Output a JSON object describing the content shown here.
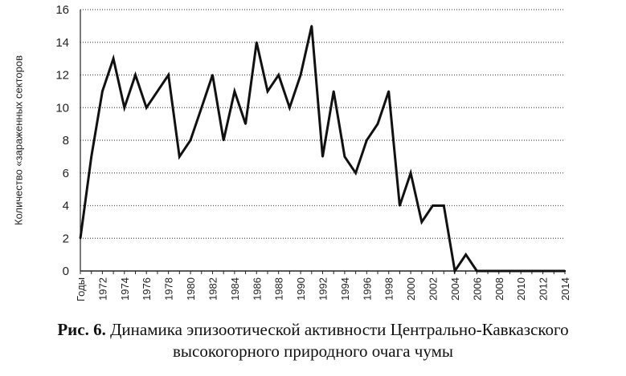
{
  "figure": {
    "caption_prefix": "Рис. 6.",
    "caption_line1": "Динамика эпизоотической активности Центрально-Кавказского",
    "caption_line2": "высокогорного природного очага чумы"
  },
  "chart_data": {
    "type": "line",
    "title": "",
    "ylabel": "Количество «зараженных секторов",
    "xlabel": "",
    "x_first_label": "Годы",
    "ylim": [
      0,
      16
    ],
    "yticks": [
      0,
      2,
      4,
      6,
      8,
      10,
      12,
      14,
      16
    ],
    "xlim": [
      1970,
      2014
    ],
    "xtick_labels": [
      "1972",
      "1974",
      "1976",
      "1978",
      "1980",
      "1982",
      "1984",
      "1986",
      "1988",
      "1990",
      "1992",
      "1994",
      "1996",
      "1998",
      "2000",
      "2002",
      "2004",
      "2006",
      "2008",
      "2010",
      "2012",
      "2014"
    ],
    "grid": true,
    "legend": "none",
    "line_color": "#111111",
    "x": [
      1970,
      1971,
      1972,
      1973,
      1974,
      1975,
      1976,
      1977,
      1978,
      1979,
      1980,
      1981,
      1982,
      1983,
      1984,
      1985,
      1986,
      1987,
      1988,
      1989,
      1990,
      1991,
      1992,
      1993,
      1994,
      1995,
      1996,
      1997,
      1998,
      1999,
      2000,
      2001,
      2002,
      2003,
      2004,
      2005,
      2006,
      2007,
      2008,
      2009,
      2010,
      2011,
      2012,
      2013,
      2014
    ],
    "values": [
      2,
      7,
      11,
      13,
      10,
      12,
      10,
      11,
      12,
      7,
      8,
      10,
      12,
      8,
      11,
      9,
      14,
      11,
      12,
      10,
      12,
      15,
      7,
      11,
      7,
      6,
      8,
      9,
      11,
      4,
      6,
      3,
      4,
      4,
      0,
      1,
      0,
      0,
      0,
      0,
      0,
      0,
      0,
      0,
      0
    ]
  }
}
